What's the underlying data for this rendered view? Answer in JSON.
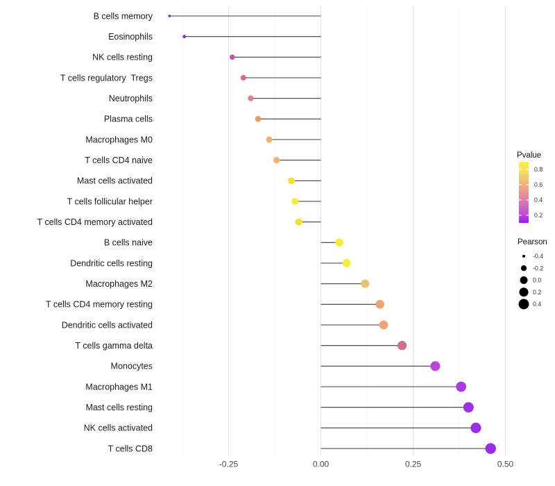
{
  "chart_data": {
    "type": "lollipop",
    "title": "",
    "xlabel": "",
    "ylabel": "",
    "orientation": "horizontal",
    "baseline": 0,
    "xlim": [
      -0.44,
      0.53
    ],
    "x_major_ticks": [
      -0.25,
      0,
      0.25,
      0.5
    ],
    "x_tick_labels": [
      "-0.25",
      "0.00",
      "0.25",
      "0.50"
    ],
    "x_minor_ticks": [
      -0.375,
      -0.125,
      0.125,
      0.375
    ],
    "grid": true,
    "points": [
      {
        "label": "B cells memory",
        "pearson": -0.41,
        "color": "#8B21D8"
      },
      {
        "label": "Eosinophils",
        "pearson": -0.37,
        "color": "#9229D8"
      },
      {
        "label": "NK cells resting",
        "pearson": -0.24,
        "color": "#C8549E"
      },
      {
        "label": "T cells regulatory  Tregs",
        "pearson": -0.21,
        "color": "#D2689A"
      },
      {
        "label": "Neutrophils",
        "pearson": -0.19,
        "color": "#DE8286"
      },
      {
        "label": "Plasma cells",
        "pearson": -0.17,
        "color": "#E89C6C"
      },
      {
        "label": "Macrophages M0",
        "pearson": -0.14,
        "color": "#EFB46D"
      },
      {
        "label": "T cells CD4 naive",
        "pearson": -0.12,
        "color": "#EFB46D"
      },
      {
        "label": "Mast cells activated",
        "pearson": -0.08,
        "color": "#F8E136"
      },
      {
        "label": "T cells follicular helper",
        "pearson": -0.07,
        "color": "#F9E93B"
      },
      {
        "label": "T cells CD4 memory activated",
        "pearson": -0.06,
        "color": "#F8E02E"
      },
      {
        "label": "B cells naive",
        "pearson": 0.05,
        "color": "#FBEE2F"
      },
      {
        "label": "Dendritic cells resting",
        "pearson": 0.07,
        "color": "#FCEF33"
      },
      {
        "label": "Macrophages M2",
        "pearson": 0.12,
        "color": "#EFC273"
      },
      {
        "label": "T cells CD4 memory resting",
        "pearson": 0.16,
        "color": "#EFA274"
      },
      {
        "label": "Dendritic cells activated",
        "pearson": 0.17,
        "color": "#EFA376"
      },
      {
        "label": "T cells gamma delta",
        "pearson": 0.22,
        "color": "#D06E96"
      },
      {
        "label": "Monocytes",
        "pearson": 0.31,
        "color": "#BC46DC"
      },
      {
        "label": "Macrophages M1",
        "pearson": 0.38,
        "color": "#A83BE3"
      },
      {
        "label": "Mast cells resting",
        "pearson": 0.4,
        "color": "#9D31E8"
      },
      {
        "label": "NK cells activated",
        "pearson": 0.42,
        "color": "#9C2DE8"
      },
      {
        "label": "T cells CD8",
        "pearson": 0.46,
        "color": "#9A2BE8"
      }
    ]
  },
  "legends": {
    "pvalue": {
      "title": "Pvalue",
      "tick_labels": [
        "0.8",
        "0.6",
        "0.4",
        "0.2"
      ],
      "tick_values": [
        0.8,
        0.6,
        0.4,
        0.2
      ],
      "range": [
        0.9,
        0.1
      ],
      "gradient_top_to_bottom": [
        "#FCF235",
        "#F9E261",
        "#F0AF7D",
        "#DC80A9",
        "#BC49DC",
        "#A110F0"
      ]
    },
    "pearson": {
      "title": "Pearson",
      "items": [
        {
          "label": "-0.4",
          "value": -0.4
        },
        {
          "label": "-0.2",
          "value": -0.2
        },
        {
          "label": "0.0",
          "value": 0.0
        },
        {
          "label": "0.2",
          "value": 0.2
        },
        {
          "label": "0.4",
          "value": 0.4
        }
      ],
      "dot_color": "#000000"
    }
  },
  "colors": {
    "background": "#FFFFFF",
    "stem": "#3C3C3C",
    "grid_major": "#E7E7E7",
    "grid_minor": "#F3F3F3",
    "axis_text": "#4A4A4A",
    "category_text": "#1C1C1C",
    "legend_text": "#333333"
  }
}
